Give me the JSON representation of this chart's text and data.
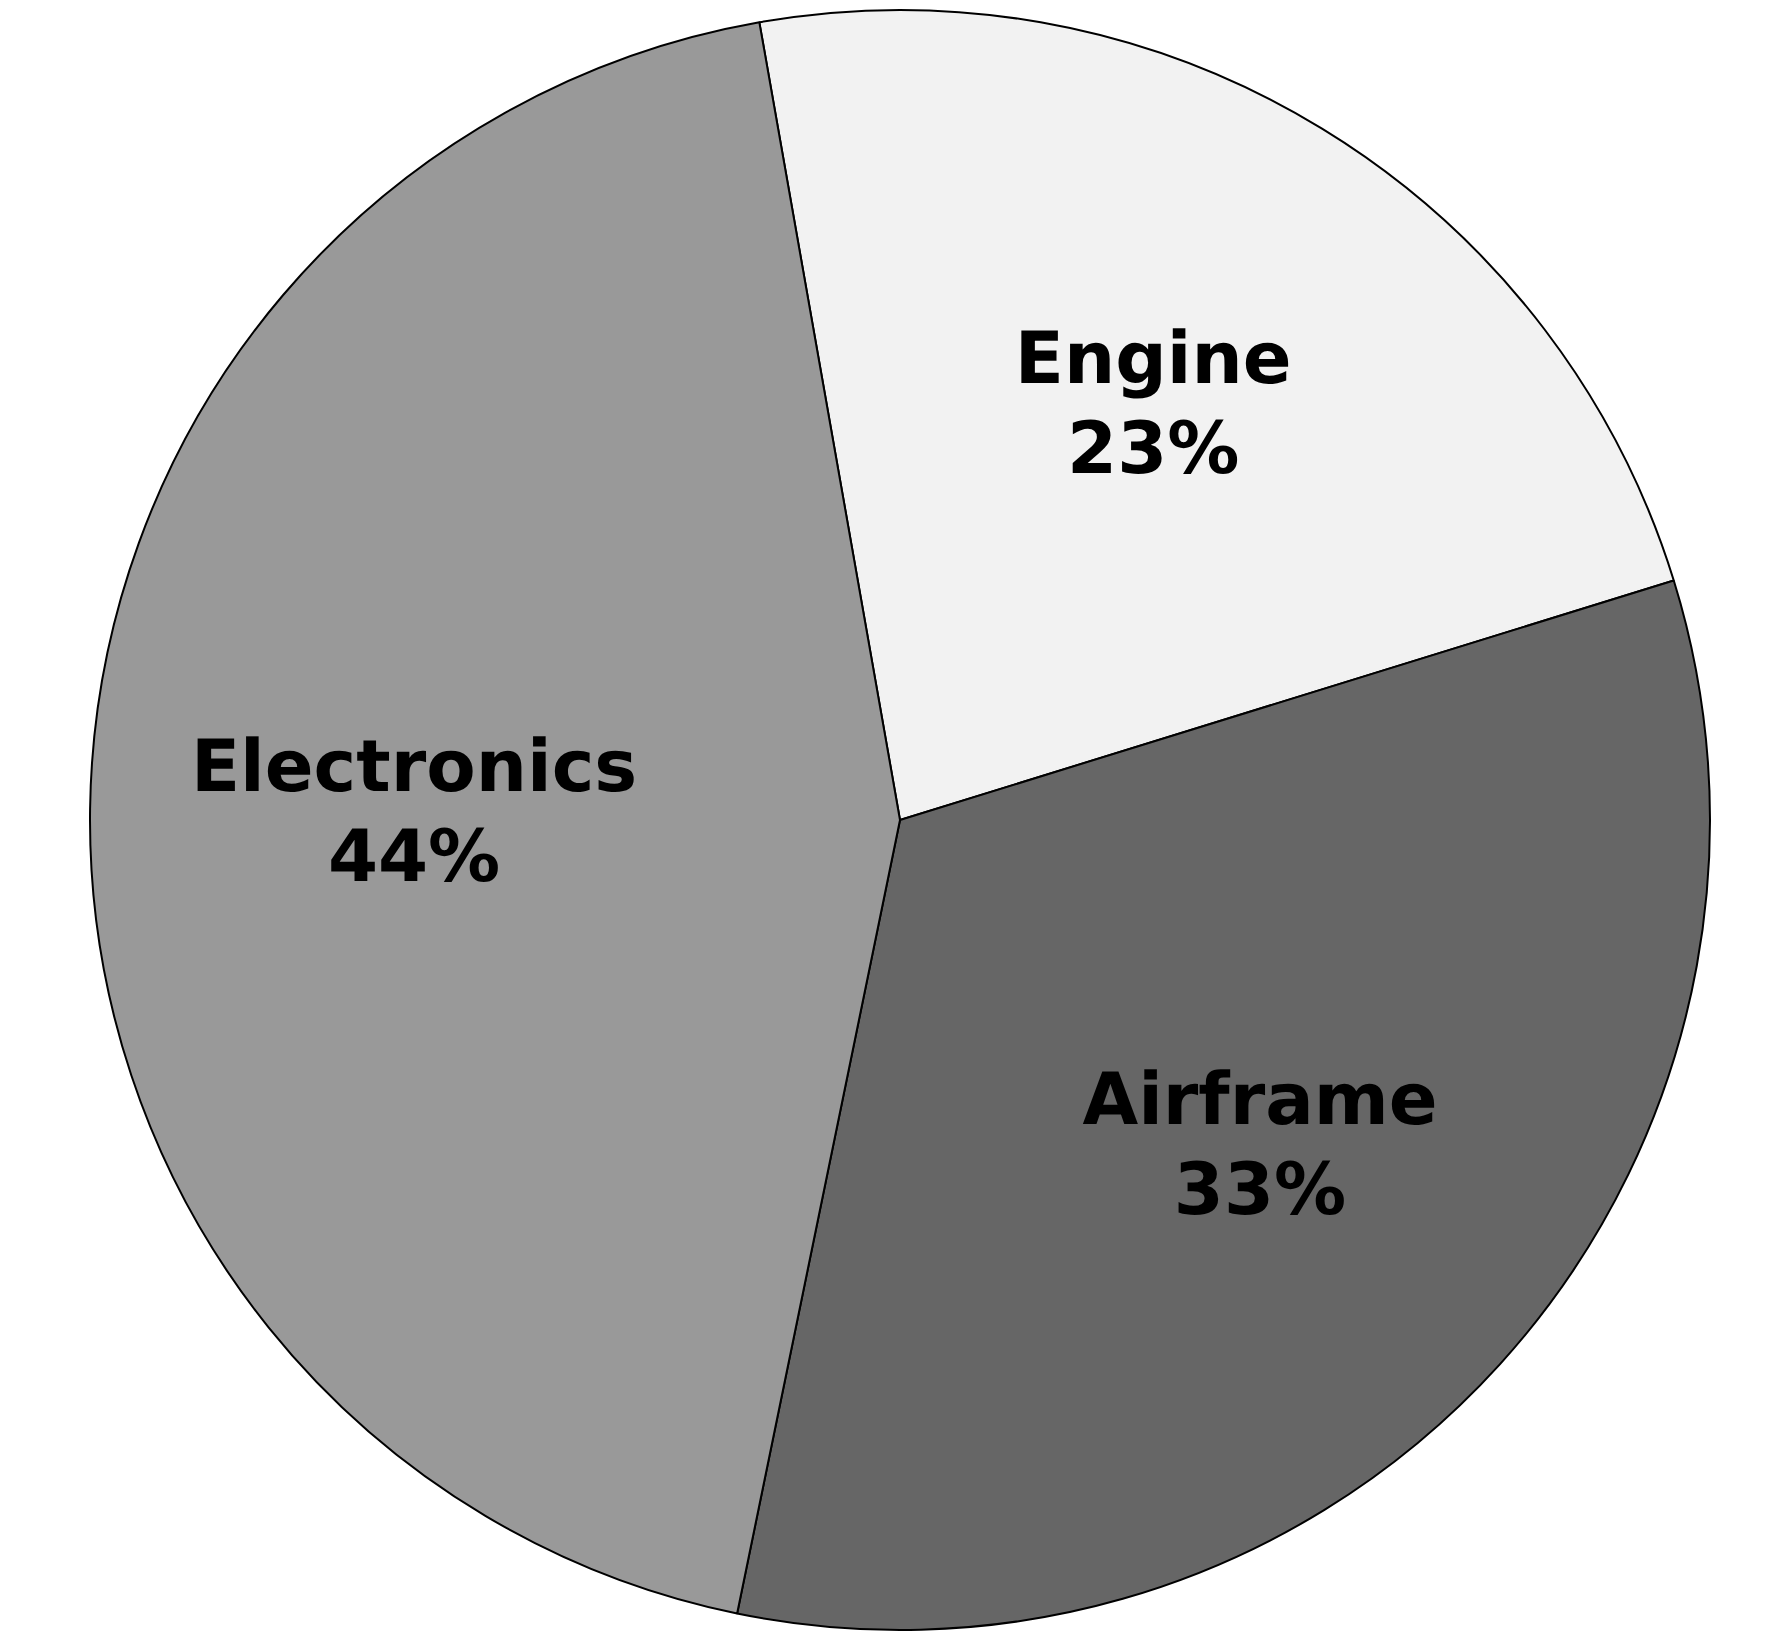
{
  "chart_data": {
    "type": "pie",
    "categories": [
      "Engine",
      "Airframe",
      "Electronics"
    ],
    "values": [
      23,
      33,
      44
    ],
    "value_labels": [
      "23%",
      "33%",
      "44%"
    ],
    "colors": [
      "#f2f2f2",
      "#666666",
      "#999999"
    ]
  }
}
